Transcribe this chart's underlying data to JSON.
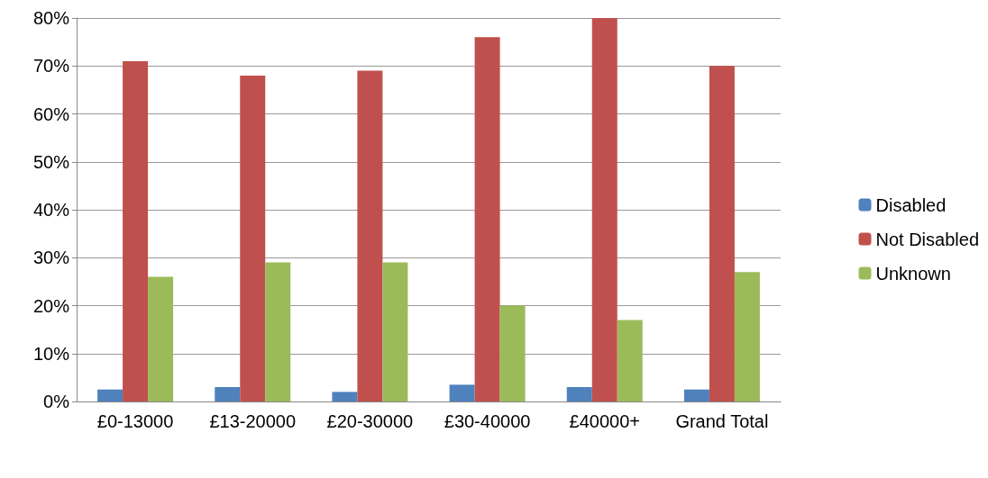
{
  "chart_data": {
    "type": "bar",
    "categories": [
      "£0-13000",
      "£13-20000",
      "£20-30000",
      "£30-40000",
      "£40000+",
      "Grand Total"
    ],
    "series": [
      {
        "name": "Disabled",
        "color": "#4f81bd",
        "values": [
          2.5,
          3,
          2,
          3.5,
          3,
          2.5
        ]
      },
      {
        "name": "Not Disabled",
        "color": "#c0504d",
        "values": [
          71,
          68,
          69,
          76,
          80,
          70
        ]
      },
      {
        "name": "Unknown",
        "color": "#9bbb59",
        "values": [
          26,
          29,
          29,
          20,
          17,
          27
        ]
      }
    ],
    "ylim": [
      0,
      80
    ],
    "yticks": [
      {
        "value": 0,
        "label": "0%"
      },
      {
        "value": 10,
        "label": "10%"
      },
      {
        "value": 20,
        "label": "20%"
      },
      {
        "value": 30,
        "label": "30%"
      },
      {
        "value": 40,
        "label": "40%"
      },
      {
        "value": 50,
        "label": "50%"
      },
      {
        "value": 60,
        "label": "60%"
      },
      {
        "value": 70,
        "label": "70%"
      },
      {
        "value": 80,
        "label": "80%"
      }
    ],
    "grid": "y",
    "legend": "right"
  }
}
